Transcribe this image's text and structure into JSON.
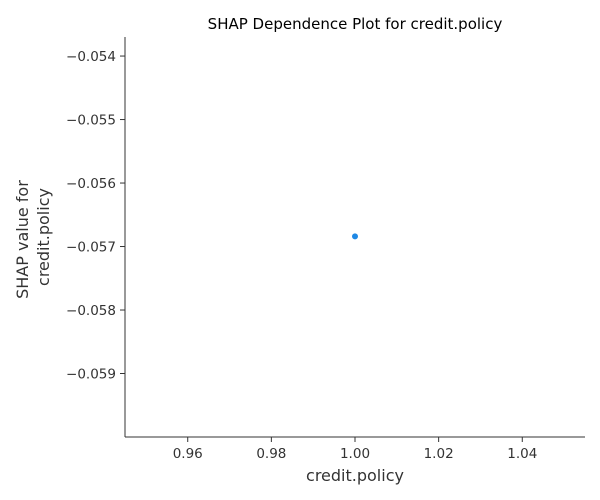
{
  "chart_data": {
    "type": "scatter",
    "title": "SHAP Dependence Plot for credit.policy",
    "xlabel": "credit.policy",
    "ylabel_lines": [
      "SHAP value for",
      "credit.policy"
    ],
    "xlim": [
      0.945,
      1.055
    ],
    "ylim": [
      -0.06,
      -0.0537
    ],
    "xticks": [
      0.96,
      0.98,
      1.0,
      1.02,
      1.04
    ],
    "xtick_labels": [
      "0.96",
      "0.98",
      "1.00",
      "1.02",
      "1.04"
    ],
    "yticks": [
      -0.054,
      -0.055,
      -0.056,
      -0.057,
      -0.058,
      -0.059
    ],
    "ytick_labels": [
      "−0.054",
      "−0.055",
      "−0.056",
      "−0.057",
      "−0.058",
      "−0.059"
    ],
    "points": [
      {
        "x": 1.0,
        "y": -0.05684
      }
    ],
    "point_color": "#1e88e5",
    "grid": false,
    "spines": [
      "left",
      "bottom"
    ]
  }
}
